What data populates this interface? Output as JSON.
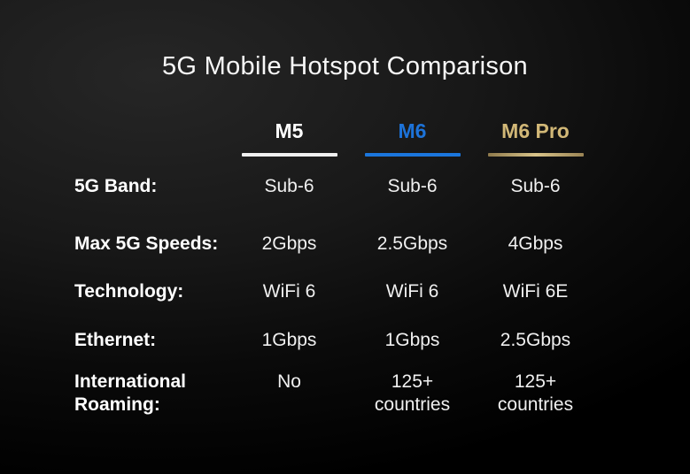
{
  "title": "5G Mobile Hotspot Comparison",
  "colors": {
    "background": "#000000",
    "title_text": "#f7f7f7",
    "m5_accent": "#ffffff",
    "m6_accent": "#1d73d9",
    "m6_pro_accent": "#d2b877",
    "value_text": "#f0f0f0"
  },
  "table": {
    "columns": [
      {
        "name": "M5",
        "accent": "#ffffff"
      },
      {
        "name": "M6",
        "accent": "#1d73d9"
      },
      {
        "name": "M6 Pro",
        "accent": "#d2b877"
      }
    ],
    "rows": [
      {
        "label": "5G Band:",
        "values": [
          "Sub-6",
          "Sub-6",
          "Sub-6"
        ]
      },
      {
        "label": "Max 5G Speeds:",
        "values": [
          "2Gbps",
          "2.5Gbps",
          "4Gbps"
        ]
      },
      {
        "label": "Technology:",
        "values": [
          "WiFi 6",
          "WiFi 6",
          "WiFi 6E"
        ]
      },
      {
        "label": "Ethernet:",
        "values": [
          "1Gbps",
          "1Gbps",
          "2.5Gbps"
        ]
      },
      {
        "label": "International\nRoaming:",
        "values": [
          "No",
          "125+\ncountries",
          "125+\ncountries"
        ]
      }
    ]
  },
  "chart_data": {
    "type": "table",
    "title": "5G Mobile Hotspot Comparison",
    "columns": [
      "M5",
      "M6",
      "M6 Pro"
    ],
    "row_labels": [
      "5G Band:",
      "Max 5G Speeds:",
      "Technology:",
      "Ethernet:",
      "International Roaming:"
    ],
    "cells": [
      [
        "Sub-6",
        "Sub-6",
        "Sub-6"
      ],
      [
        "2Gbps",
        "2.5Gbps",
        "4Gbps"
      ],
      [
        "WiFi 6",
        "WiFi 6",
        "WiFi 6E"
      ],
      [
        "1Gbps",
        "1Gbps",
        "2.5Gbps"
      ],
      [
        "No",
        "125+ countries",
        "125+ countries"
      ]
    ],
    "legend_position": "none",
    "grid": false
  }
}
